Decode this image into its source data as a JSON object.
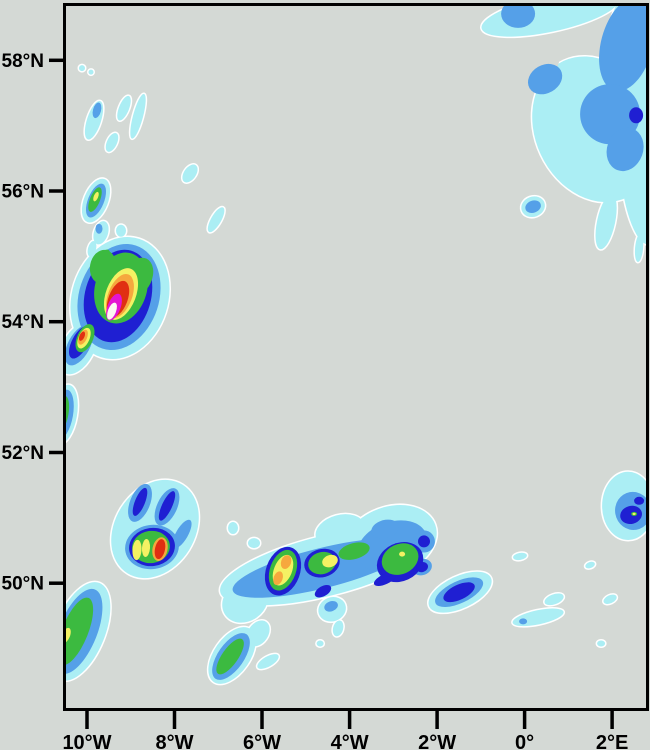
{
  "colors": {
    "background": "#d4d9d5",
    "frame": "#000000",
    "tick": "#000000",
    "tick_label": "#000000",
    "contour_outline": "#ffffff"
  },
  "axes": {
    "x": {
      "range": [
        -10.48,
        2.82
      ],
      "ticks": [
        {
          "v": -10,
          "label": "10°W"
        },
        {
          "v": -8,
          "label": "8°W"
        },
        {
          "v": -6,
          "label": "6°W"
        },
        {
          "v": -4,
          "label": "4°W"
        },
        {
          "v": -2,
          "label": "2°W"
        },
        {
          "v": 0,
          "label": "0°"
        },
        {
          "v": 2,
          "label": "2°E"
        }
      ]
    },
    "y": {
      "range": [
        48.06,
        58.83
      ],
      "ticks": [
        {
          "v": 58,
          "label": "58°N"
        },
        {
          "v": 56,
          "label": "56°N"
        },
        {
          "v": 54,
          "label": "54°N"
        },
        {
          "v": 52,
          "label": "52°N"
        },
        {
          "v": 50,
          "label": "50°N"
        }
      ]
    }
  },
  "chart_data": {
    "type": "contour",
    "subtype": "filled contour precipitation-style intensity field on a longitude/latitude grid",
    "title": "",
    "xlabel": "",
    "ylabel": "",
    "x_range": [
      -10.48,
      2.82
    ],
    "y_range": [
      48.06,
      58.83
    ],
    "grid": false,
    "legend": false,
    "background": "#d4d9d5",
    "levels": [
      "#abeef4",
      "#55a0e8",
      "#1f1fd2",
      "#3cba40",
      "#f4f163",
      "#f6a83e",
      "#e02f12",
      "#e414d2",
      "#fcf7f2"
    ],
    "level_meaning": "increasing intensity from level 1 (pale cyan) to level 9 (white core); level 0 entries are background gaps inside level-1 areas",
    "cells_format": [
      "lon",
      "lat",
      "rx_deg",
      "ry_deg",
      "rotation_deg",
      "level"
    ],
    "cells": [
      [
        0.583,
        58.71,
        1.6,
        0.276,
        -12,
        1
      ],
      [
        1.614,
        56.944,
        1.371,
        1.152,
        -25,
        1
      ],
      [
        2.457,
        58.018,
        0.571,
        1.075,
        0,
        1
      ],
      [
        2.64,
        56.098,
        0.411,
        0.922,
        -8,
        1
      ],
      [
        1.863,
        55.53,
        0.206,
        0.43,
        12,
        1
      ],
      [
        2.617,
        55.13,
        0.091,
        0.215,
        5,
        1
      ],
      [
        0.194,
        55.76,
        0.274,
        0.154,
        -20,
        1
      ],
      [
        -0.103,
        57.896,
        0.96,
        0.399,
        -25,
        0
      ],
      [
        -0.149,
        58.71,
        0.389,
        0.215,
        0,
        2
      ],
      [
        2.343,
        58.249,
        0.594,
        0.737,
        15,
        2
      ],
      [
        1.954,
        57.174,
        0.686,
        0.461,
        0,
        2
      ],
      [
        0.469,
        57.711,
        0.411,
        0.215,
        -30,
        2
      ],
      [
        2.297,
        56.636,
        0.411,
        0.338,
        20,
        2
      ],
      [
        0.194,
        55.76,
        0.183,
        0.092,
        -20,
        2
      ],
      [
        2.549,
        57.158,
        0.16,
        0.123,
        0,
        3
      ],
      [
        -10.114,
        57.88,
        0.069,
        0.046,
        0,
        1
      ],
      [
        -9.909,
        57.819,
        0.057,
        0.038,
        0,
        1
      ],
      [
        -9.84,
        57.081,
        0.16,
        0.307,
        18,
        1
      ],
      [
        -9.154,
        57.266,
        0.114,
        0.2,
        22,
        1
      ],
      [
        -8.834,
        57.143,
        0.114,
        0.353,
        15,
        1
      ],
      [
        -9.429,
        56.744,
        0.114,
        0.154,
        25,
        1
      ],
      [
        -7.646,
        56.267,
        0.137,
        0.154,
        35,
        1
      ],
      [
        -7.051,
        55.561,
        0.114,
        0.215,
        30,
        1
      ],
      [
        -9.771,
        57.235,
        0.091,
        0.123,
        15,
        2
      ],
      [
        -9.794,
        55.853,
        0.274,
        0.353,
        22,
        1
      ],
      [
        -9.68,
        55.361,
        0.16,
        0.184,
        18,
        1
      ],
      [
        -9.223,
        55.392,
        0.114,
        0.092,
        0,
        1
      ],
      [
        -9.886,
        55.115,
        0.091,
        0.123,
        15,
        1
      ],
      [
        -9.566,
        55.054,
        0.206,
        0.092,
        -25,
        1
      ],
      [
        -9.794,
        55.853,
        0.183,
        0.276,
        22,
        2
      ],
      [
        -9.726,
        55.423,
        0.08,
        0.077,
        0,
        2
      ],
      [
        -9.817,
        55.868,
        0.114,
        0.2,
        22,
        4
      ],
      [
        -9.794,
        55.914,
        0.05,
        0.077,
        22,
        5
      ],
      [
        -9.566,
        55.054,
        0.091,
        0.046,
        -25,
        4
      ],
      [
        -9.246,
        54.363,
        1.097,
        0.952,
        18,
        1
      ],
      [
        -10.206,
        53.594,
        0.366,
        0.43,
        28,
        1
      ],
      [
        -9.269,
        54.378,
        0.914,
        0.829,
        18,
        2
      ],
      [
        -10.183,
        53.641,
        0.251,
        0.338,
        28,
        2
      ],
      [
        -9.291,
        54.393,
        0.754,
        0.722,
        16,
        3
      ],
      [
        -10.16,
        53.687,
        0.183,
        0.276,
        28,
        3
      ],
      [
        -9.223,
        54.516,
        0.594,
        0.553,
        16,
        4
      ],
      [
        -9.634,
        54.839,
        0.297,
        0.261,
        10,
        4
      ],
      [
        -8.834,
        54.685,
        0.32,
        0.307,
        25,
        4
      ],
      [
        -9.223,
        54.424,
        0.343,
        0.415,
        21,
        5
      ],
      [
        -9.246,
        54.393,
        0.274,
        0.353,
        21,
        6
      ],
      [
        -9.291,
        54.347,
        0.217,
        0.292,
        21,
        7
      ],
      [
        -9.383,
        54.224,
        0.149,
        0.215,
        21,
        8
      ],
      [
        -9.429,
        54.163,
        0.091,
        0.138,
        21,
        9
      ],
      [
        -10.046,
        53.748,
        0.183,
        0.23,
        24,
        4
      ],
      [
        -10.069,
        53.748,
        0.126,
        0.169,
        24,
        5
      ],
      [
        -10.091,
        53.763,
        0.091,
        0.123,
        24,
        6
      ],
      [
        -10.114,
        53.779,
        0.057,
        0.077,
        24,
        7
      ],
      [
        -10.526,
        52.581,
        0.297,
        0.461,
        10,
        1
      ],
      [
        -10.549,
        52.581,
        0.229,
        0.384,
        10,
        2
      ],
      [
        -10.571,
        52.596,
        0.149,
        0.276,
        10,
        4
      ],
      [
        -10.617,
        52.627,
        0.069,
        0.123,
        10,
        5
      ],
      [
        -8.446,
        50.829,
        0.914,
        0.799,
        32,
        1
      ],
      [
        -8.789,
        51.229,
        0.229,
        0.307,
        22,
        2
      ],
      [
        -8.171,
        51.168,
        0.229,
        0.307,
        25,
        2
      ],
      [
        -7.829,
        50.753,
        0.137,
        0.246,
        30,
        2
      ],
      [
        -8.514,
        50.553,
        0.617,
        0.338,
        -8,
        2
      ],
      [
        -8.789,
        51.244,
        0.114,
        0.23,
        22,
        3
      ],
      [
        -8.171,
        51.183,
        0.114,
        0.246,
        25,
        3
      ],
      [
        -8.514,
        50.553,
        0.526,
        0.292,
        -8,
        3
      ],
      [
        -8.537,
        50.553,
        0.434,
        0.246,
        -8,
        4
      ],
      [
        -8.857,
        50.507,
        0.103,
        0.154,
        4,
        5
      ],
      [
        -8.651,
        50.538,
        0.091,
        0.138,
        4,
        5
      ],
      [
        -8.331,
        50.522,
        0.171,
        0.184,
        12,
        6
      ],
      [
        -8.331,
        50.522,
        0.114,
        0.154,
        12,
        7
      ],
      [
        -4.56,
        50.261,
        2.469,
        0.461,
        -14,
        1
      ],
      [
        -3.074,
        50.645,
        1.097,
        0.522,
        -20,
        1
      ],
      [
        -4.217,
        50.799,
        0.571,
        0.246,
        -15,
        1
      ],
      [
        -6.389,
        49.724,
        0.549,
        0.307,
        -35,
        1
      ],
      [
        -4.629,
        50.23,
        2.103,
        0.307,
        -14,
        2
      ],
      [
        -3.029,
        50.568,
        0.823,
        0.369,
        -20,
        2
      ],
      [
        -5.52,
        50.184,
        0.389,
        0.384,
        20,
        3
      ],
      [
        -5.52,
        50.199,
        0.297,
        0.323,
        20,
        4
      ],
      [
        -5.52,
        50.199,
        0.206,
        0.246,
        22,
        5
      ],
      [
        -5.451,
        50.323,
        0.114,
        0.108,
        20,
        6
      ],
      [
        -5.634,
        50.077,
        0.103,
        0.108,
        20,
        6
      ],
      [
        -4.629,
        50.307,
        0.411,
        0.215,
        -15,
        3
      ],
      [
        -4.629,
        50.307,
        0.32,
        0.169,
        -15,
        4
      ],
      [
        -4.446,
        50.338,
        0.183,
        0.092,
        -20,
        5
      ],
      [
        -3.897,
        50.491,
        0.366,
        0.123,
        -15,
        4
      ],
      [
        -2.846,
        50.322,
        0.549,
        0.292,
        -25,
        3
      ],
      [
        -2.846,
        50.369,
        0.434,
        0.23,
        -25,
        4
      ],
      [
        -2.8,
        50.445,
        0.069,
        0.038,
        0,
        5
      ],
      [
        -3.189,
        50.061,
        0.274,
        0.077,
        -25,
        3
      ],
      [
        -2.343,
        50.246,
        0.229,
        0.123,
        -20,
        2
      ],
      [
        -2.343,
        50.246,
        0.137,
        0.077,
        -20,
        3
      ],
      [
        -2.3,
        50.64,
        0.25,
        0.17,
        -20,
        2
      ],
      [
        -2.3,
        50.64,
        0.137,
        0.092,
        -20,
        3
      ],
      [
        -4.606,
        49.877,
        0.206,
        0.077,
        -30,
        3
      ],
      [
        -3.189,
        50.829,
        0.32,
        0.138,
        -15,
        2
      ],
      [
        -6.503,
        49.985,
        0.183,
        0.108,
        0,
        1
      ],
      [
        -6.503,
        49.985,
        0.08,
        0.046,
        0,
        2
      ],
      [
        -6.183,
        50.614,
        0.137,
        0.077,
        0,
        1
      ],
      [
        -6.663,
        50.845,
        0.114,
        0.092,
        0,
        1
      ],
      [
        -4.4,
        49.601,
        0.32,
        0.184,
        -20,
        1
      ],
      [
        -4.423,
        49.647,
        0.16,
        0.077,
        -20,
        2
      ],
      [
        -4.263,
        49.309,
        0.114,
        0.123,
        15,
        1
      ],
      [
        -4.674,
        49.078,
        0.08,
        0.046,
        0,
        1
      ],
      [
        -5.863,
        48.802,
        0.274,
        0.077,
        -30,
        1
      ],
      [
        -1.474,
        49.862,
        0.777,
        0.246,
        -25,
        1
      ],
      [
        -1.497,
        49.862,
        0.594,
        0.169,
        -25,
        2
      ],
      [
        -1.497,
        49.862,
        0.389,
        0.115,
        -25,
        3
      ],
      [
        0.309,
        49.478,
        0.594,
        0.108,
        -12,
        1
      ],
      [
        -0.034,
        49.416,
        0.091,
        0.046,
        0,
        2
      ],
      [
        -0.105,
        50.41,
        0.16,
        0.054,
        -10,
        1
      ],
      [
        0.674,
        49.754,
        0.229,
        0.077,
        -20,
        1
      ],
      [
        1.497,
        50.276,
        0.114,
        0.046,
        -20,
        1
      ],
      [
        1.954,
        49.754,
        0.16,
        0.061,
        -25,
        1
      ],
      [
        1.749,
        49.078,
        0.091,
        0.046,
        0,
        1
      ],
      [
        2.366,
        51.183,
        0.594,
        0.522,
        0,
        1
      ],
      [
        2.48,
        51.106,
        0.411,
        0.292,
        -10,
        2
      ],
      [
        2.434,
        51.044,
        0.251,
        0.138,
        -15,
        3
      ],
      [
        2.617,
        51.26,
        0.114,
        0.061,
        0,
        3
      ],
      [
        2.503,
        51.06,
        0.069,
        0.031,
        0,
        4
      ],
      [
        2.503,
        51.06,
        0.037,
        0.018,
        0,
        5
      ],
      [
        -10.16,
        49.263,
        0.571,
        0.799,
        22,
        1
      ],
      [
        -10.206,
        49.263,
        0.434,
        0.691,
        22,
        2
      ],
      [
        -10.274,
        49.263,
        0.297,
        0.553,
        22,
        4
      ],
      [
        -10.48,
        49.201,
        0.091,
        0.123,
        22,
        5
      ],
      [
        -6.686,
        48.894,
        0.411,
        0.492,
        35,
        1
      ],
      [
        -6.709,
        48.879,
        0.297,
        0.415,
        35,
        2
      ],
      [
        -6.731,
        48.879,
        0.183,
        0.323,
        35,
        4
      ],
      [
        -6.091,
        49.232,
        0.229,
        0.215,
        35,
        1
      ]
    ]
  }
}
